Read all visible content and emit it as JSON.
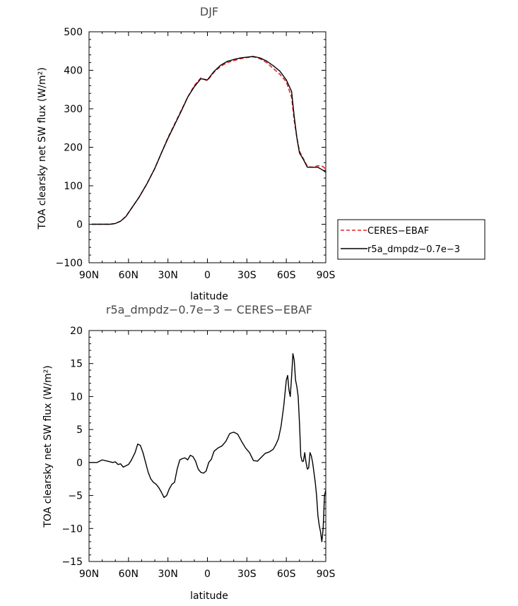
{
  "chart_data": [
    {
      "type": "line",
      "title": "DJF",
      "xlabel": "latitude",
      "ylabel": "TOA clearsky net SW flux (W/m²)",
      "xlim": [
        -90,
        90
      ],
      "ylim": [
        -100,
        500
      ],
      "xticks": [
        -90,
        -60,
        -30,
        0,
        30,
        60,
        90
      ],
      "xtick_labels": [
        "90N",
        "60N",
        "30N",
        "0",
        "30S",
        "60S",
        "90S"
      ],
      "yticks": [
        -100,
        0,
        100,
        200,
        300,
        400,
        500
      ],
      "ytick_labels": [
        "−100",
        "0",
        "100",
        "200",
        "300",
        "400",
        "500"
      ],
      "legend": {
        "placement": "right"
      },
      "series": [
        {
          "name": "CERES−EBAF",
          "color": "#e8202a",
          "style": "dashed",
          "x": [
            -88,
            -80,
            -74,
            -70,
            -66,
            -62,
            -58,
            -52,
            -46,
            -40,
            -35,
            -30,
            -25,
            -20,
            -15,
            -10,
            -5,
            0,
            5,
            10,
            15,
            20,
            25,
            30,
            35,
            40,
            45,
            50,
            55,
            60,
            64,
            66,
            68,
            70,
            73,
            76,
            80,
            84,
            88,
            90
          ],
          "y": [
            0,
            0,
            0,
            2,
            8,
            20,
            40,
            70,
            105,
            145,
            185,
            225,
            260,
            295,
            330,
            360,
            380,
            373,
            395,
            410,
            420,
            425,
            430,
            433,
            435,
            430,
            420,
            405,
            390,
            370,
            330,
            270,
            225,
            190,
            170,
            150,
            148,
            152,
            150,
            142
          ]
        },
        {
          "name": "r5a_dmpdz−0.7e−3",
          "color": "#000000",
          "style": "solid",
          "x": [
            -88,
            -80,
            -74,
            -70,
            -66,
            -62,
            -58,
            -52,
            -46,
            -40,
            -35,
            -30,
            -25,
            -20,
            -15,
            -10,
            -5,
            0,
            5,
            10,
            15,
            20,
            25,
            30,
            35,
            40,
            45,
            50,
            55,
            60,
            64,
            66,
            68,
            70,
            73,
            76,
            80,
            84,
            88,
            90
          ],
          "y": [
            0,
            0,
            0,
            2,
            8,
            20,
            40,
            70,
            105,
            145,
            185,
            223,
            258,
            293,
            330,
            357,
            378,
            375,
            397,
            413,
            423,
            428,
            432,
            434,
            436,
            432,
            424,
            412,
            398,
            375,
            345,
            280,
            225,
            185,
            168,
            148,
            148,
            148,
            140,
            135
          ]
        }
      ]
    },
    {
      "type": "line",
      "title": "r5a_dmpdz−0.7e−3 − CERES−EBAF",
      "xlabel": "latitude",
      "ylabel": "TOA clearsky net SW flux (W/m²)",
      "xlim": [
        -90,
        90
      ],
      "ylim": [
        -15,
        20
      ],
      "xticks": [
        -90,
        -60,
        -30,
        0,
        30,
        60,
        90
      ],
      "xtick_labels": [
        "90N",
        "60N",
        "30N",
        "0",
        "30S",
        "60S",
        "90S"
      ],
      "yticks": [
        -15,
        -10,
        -5,
        0,
        5,
        10,
        15,
        20
      ],
      "ytick_labels": [
        "−15",
        "−10",
        "−5",
        "0",
        "5",
        "10",
        "15",
        "20"
      ],
      "series": [
        {
          "name": "r5a_dmpdz−0.7e−3 − CERES−EBAF",
          "color": "#000000",
          "style": "solid",
          "x": [
            -90,
            -84,
            -80,
            -76,
            -72,
            -70,
            -68,
            -66,
            -64,
            -62,
            -60,
            -58,
            -55,
            -53,
            -51,
            -49,
            -47,
            -45,
            -43,
            -41,
            -39,
            -37,
            -35,
            -33,
            -31,
            -29,
            -27,
            -25,
            -23,
            -21,
            -19,
            -17,
            -15,
            -13,
            -11,
            -9,
            -7,
            -5,
            -3,
            -1,
            1,
            3,
            5,
            8,
            11,
            14,
            17,
            20,
            23,
            26,
            29,
            32,
            35,
            38,
            41,
            44,
            47,
            50,
            52,
            54,
            56,
            58,
            60,
            61,
            62,
            63,
            64,
            65,
            66,
            67,
            68,
            69,
            70,
            71,
            72,
            73,
            74,
            75,
            76,
            77,
            78,
            79,
            80,
            81,
            82,
            83,
            84,
            85,
            86,
            87,
            88,
            89,
            90
          ],
          "y": [
            0,
            0,
            0.4,
            0.2,
            0,
            0.1,
            -0.3,
            -0.2,
            -0.7,
            -0.5,
            -0.3,
            0.3,
            1.5,
            2.8,
            2.6,
            1.5,
            0,
            -1.5,
            -2.5,
            -3,
            -3.3,
            -3.8,
            -4.5,
            -5.3,
            -5,
            -4,
            -3.3,
            -3,
            -1,
            0.4,
            0.6,
            0.7,
            0.4,
            1.1,
            0.9,
            0.2,
            -1,
            -1.5,
            -1.6,
            -1.3,
            0,
            0.5,
            1.7,
            2.2,
            2.5,
            3.2,
            4.4,
            4.6,
            4.3,
            3.2,
            2.2,
            1.5,
            0.3,
            0.2,
            0.8,
            1.4,
            1.6,
            2,
            2.7,
            3.6,
            5.5,
            8.5,
            12.5,
            13.2,
            11,
            10,
            13,
            16.5,
            15.5,
            12.5,
            11.5,
            10,
            6,
            1,
            0.2,
            0.2,
            1.5,
            0,
            -1,
            -0.8,
            1.5,
            1,
            0,
            -1.5,
            -3,
            -5,
            -8,
            -9.5,
            -10.5,
            -12,
            -10,
            -5,
            -4.2
          ]
        }
      ]
    }
  ]
}
